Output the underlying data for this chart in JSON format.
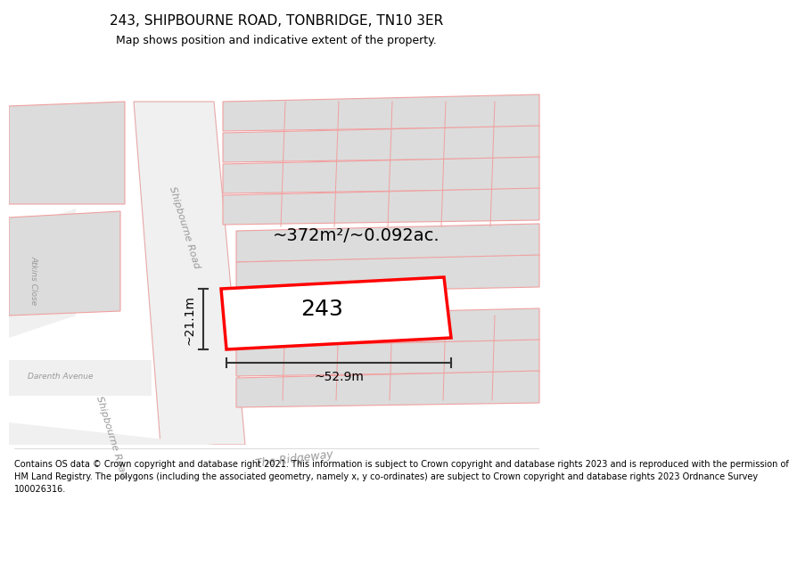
{
  "title": "243, SHIPBOURNE ROAD, TONBRIDGE, TN10 3ER",
  "subtitle": "Map shows position and indicative extent of the property.",
  "footer": "Contains OS data © Crown copyright and database right 2021. This information is subject to Crown copyright and database rights 2023 and is reproduced with the permission of\nHM Land Registry. The polygons (including the associated geometry, namely x, y co-ordinates) are subject to Crown copyright and database rights 2023 Ordnance Survey\n100026316.",
  "area_label": "~372m²/~0.092ac.",
  "width_label": "~52.9m",
  "height_label": "~21.1m",
  "property_number": "243",
  "background_color": "#ffffff",
  "map_bg": "#f5f5f5",
  "road_color": "#f5c5c5",
  "building_color": "#dcdcdc",
  "highlight_color": "#ff0000",
  "dim_line_color": "#333333",
  "title_fontsize": 11,
  "subtitle_fontsize": 9,
  "footer_fontsize": 7
}
